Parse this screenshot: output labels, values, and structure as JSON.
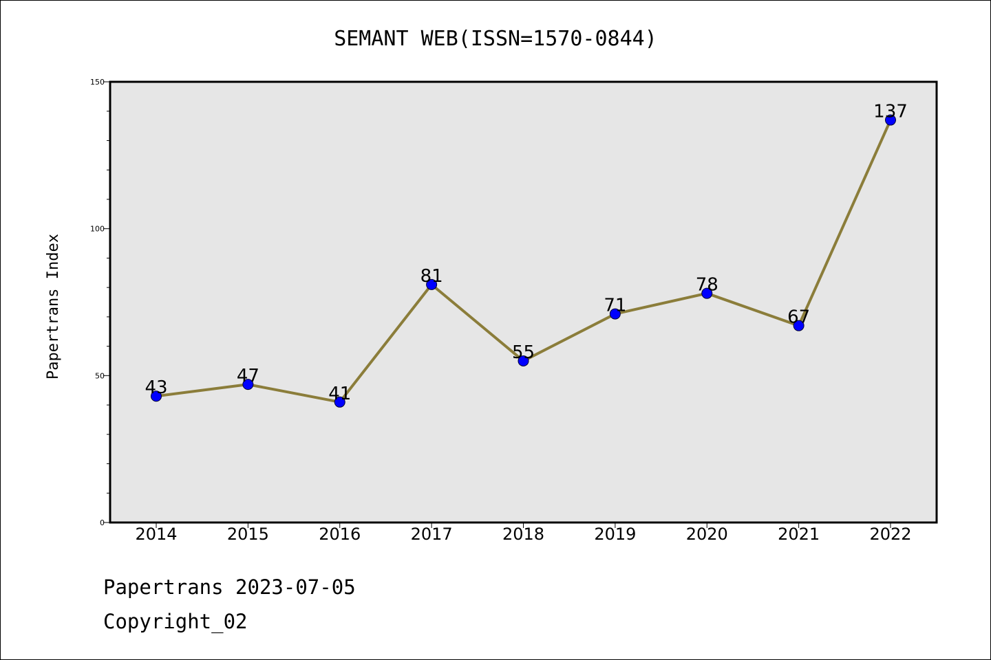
{
  "chart_data": {
    "type": "line",
    "title": "SEMANT WEB(ISSN=1570-0844)",
    "xlabel": "",
    "ylabel": "Papertrans Index",
    "categories": [
      "2014",
      "2015",
      "2016",
      "2017",
      "2018",
      "2019",
      "2020",
      "2021",
      "2022"
    ],
    "series": [
      {
        "values": [
          43,
          47,
          41,
          81,
          55,
          71,
          78,
          67,
          137
        ]
      }
    ],
    "ylim": [
      0,
      150
    ],
    "yticks": [
      0,
      50,
      100,
      150
    ],
    "data_labels": [
      "43",
      "47",
      "41",
      "81",
      "55",
      "71",
      "78",
      "67",
      "137"
    ],
    "grid": false,
    "colors": {
      "line": "#8b7d3a",
      "marker": "#0000ff",
      "plot_bg": "#e6e6e6"
    }
  },
  "footer": {
    "line1": "Papertrans 2023-07-05",
    "line2": "Copyright_02"
  }
}
